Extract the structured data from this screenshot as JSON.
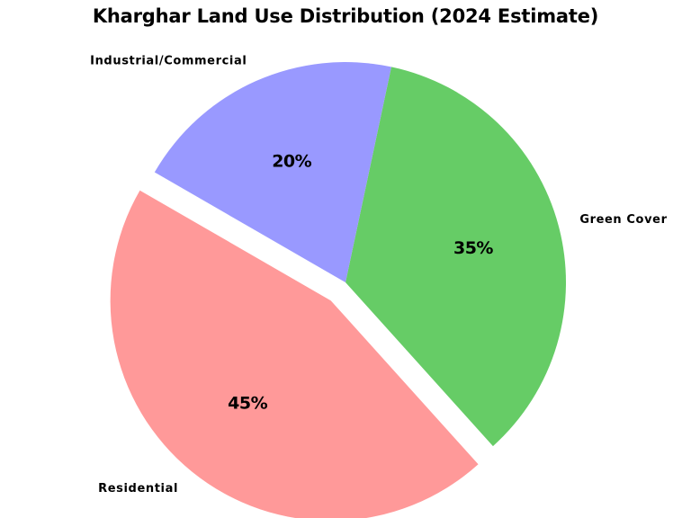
{
  "chart_data": {
    "type": "pie",
    "title": "Kharghar Land Use Distribution (2024 Estimate)",
    "categories": [
      "Residential",
      "Green Cover",
      "Industrial/Commercial"
    ],
    "values": [
      45,
      35,
      20
    ],
    "value_labels": [
      "45%",
      "35%",
      "20%"
    ],
    "colors": [
      "#ff9999",
      "#66cc66",
      "#9999ff"
    ],
    "exploded": [
      true,
      false,
      false
    ],
    "start_angle_deg": 150,
    "direction": "counterclockwise",
    "legend": "none"
  }
}
